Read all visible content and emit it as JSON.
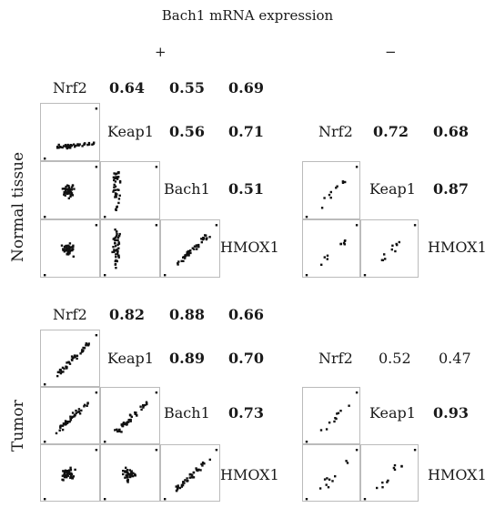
{
  "chart_data": {
    "type": "scatter",
    "title": "Bach1 mRNA expression",
    "column_headers": [
      "+",
      "−"
    ],
    "panels": [
      {
        "row": "Normal tissue",
        "column": "+",
        "variables": [
          "Nrf2",
          "Keap1",
          "Bach1",
          "HMOX1"
        ],
        "correlations": [
          {
            "pair": [
              "Nrf2",
              "Keap1"
            ],
            "r": "0.64",
            "bold": true
          },
          {
            "pair": [
              "Nrf2",
              "Bach1"
            ],
            "r": "0.55",
            "bold": true
          },
          {
            "pair": [
              "Nrf2",
              "HMOX1"
            ],
            "r": "0.69",
            "bold": true
          },
          {
            "pair": [
              "Keap1",
              "Bach1"
            ],
            "r": "0.56",
            "bold": true
          },
          {
            "pair": [
              "Keap1",
              "HMOX1"
            ],
            "r": "0.71",
            "bold": true
          },
          {
            "pair": [
              "Bach1",
              "HMOX1"
            ],
            "r": "0.51",
            "bold": true
          }
        ]
      },
      {
        "row": "Normal tissue",
        "column": "−",
        "variables": [
          "Nrf2",
          "Keap1",
          "HMOX1"
        ],
        "correlations": [
          {
            "pair": [
              "Nrf2",
              "Keap1"
            ],
            "r": "0.72",
            "bold": true
          },
          {
            "pair": [
              "Nrf2",
              "HMOX1"
            ],
            "r": "0.68",
            "bold": true
          },
          {
            "pair": [
              "Keap1",
              "HMOX1"
            ],
            "r": "0.87",
            "bold": true
          }
        ]
      },
      {
        "row": "Tumor",
        "column": "+",
        "variables": [
          "Nrf2",
          "Keap1",
          "Bach1",
          "HMOX1"
        ],
        "correlations": [
          {
            "pair": [
              "Nrf2",
              "Keap1"
            ],
            "r": "0.82",
            "bold": true
          },
          {
            "pair": [
              "Nrf2",
              "Bach1"
            ],
            "r": "0.88",
            "bold": true
          },
          {
            "pair": [
              "Nrf2",
              "HMOX1"
            ],
            "r": "0.66",
            "bold": true
          },
          {
            "pair": [
              "Keap1",
              "Bach1"
            ],
            "r": "0.89",
            "bold": true
          },
          {
            "pair": [
              "Keap1",
              "HMOX1"
            ],
            "r": "0.70",
            "bold": true
          },
          {
            "pair": [
              "Bach1",
              "HMOX1"
            ],
            "r": "0.73",
            "bold": true
          }
        ]
      },
      {
        "row": "Tumor",
        "column": "−",
        "variables": [
          "Nrf2",
          "Keap1",
          "HMOX1"
        ],
        "correlations": [
          {
            "pair": [
              "Nrf2",
              "Keap1"
            ],
            "r": "0.52",
            "bold": false
          },
          {
            "pair": [
              "Nrf2",
              "HMOX1"
            ],
            "r": "0.47",
            "bold": false
          },
          {
            "pair": [
              "Keap1",
              "HMOX1"
            ],
            "r": "0.93",
            "bold": true
          }
        ]
      }
    ],
    "row_labels": [
      "Normal tissue",
      "Tumor"
    ],
    "grid": false,
    "point_color": "#111111",
    "frame_color": "#bbbbbb"
  }
}
